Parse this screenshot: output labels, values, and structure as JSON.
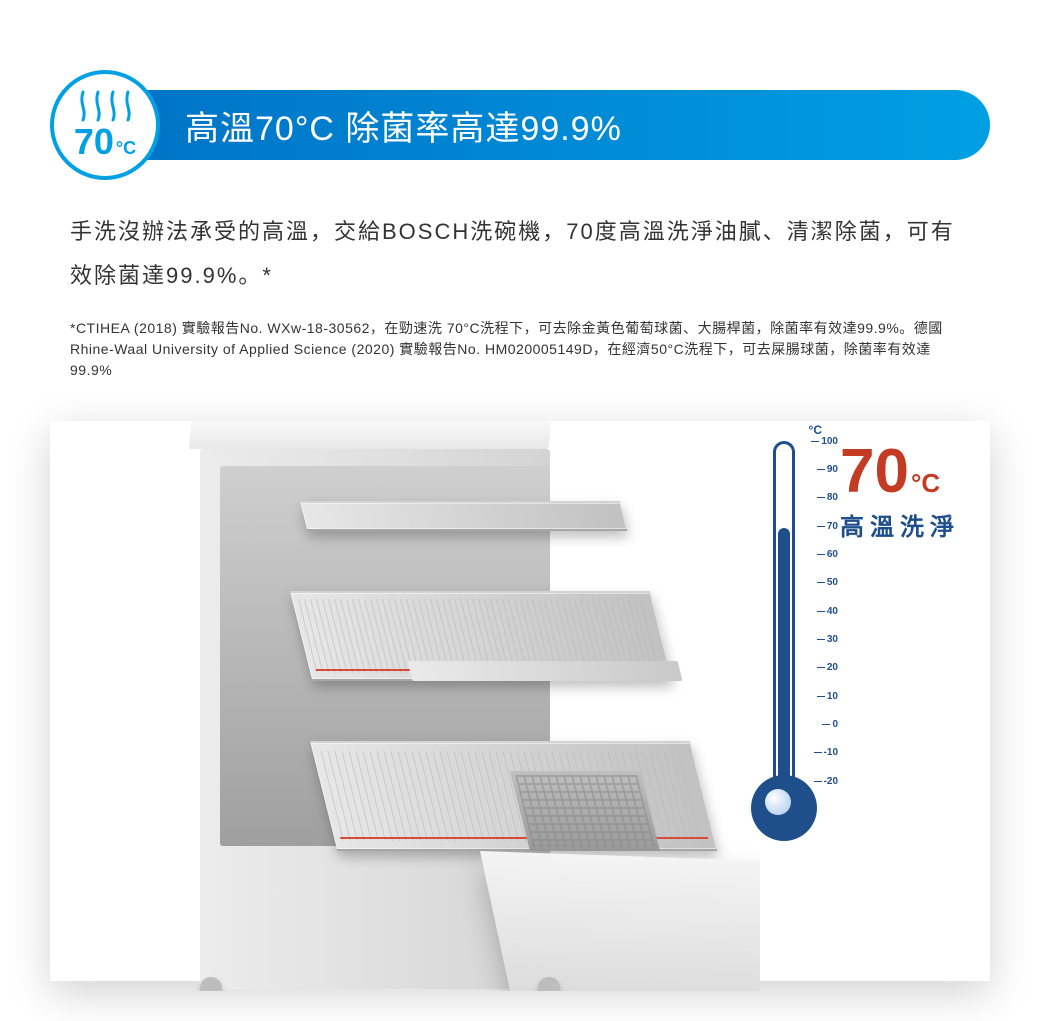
{
  "badge": {
    "temp_value": "70",
    "temp_unit": "°C",
    "wave_color": "#00a0e4",
    "border_color": "#00a0e4"
  },
  "banner": {
    "text": "高溫70°C 除菌率高達99.9%",
    "gradient_start": "#0072c6",
    "gradient_end": "#009fe3",
    "text_color": "#ffffff"
  },
  "description": "手洗沒辦法承受的高溫，交給BOSCH洗碗機，70度高溫洗淨油膩、清潔除菌，可有效除菌達99.9%。*",
  "fineprint": "*CTIHEA (2018) 實驗報告No. WXw-18-30562，在勁速洗 70°C洗程下，可去除金黃色葡萄球菌、大腸桿菌，除菌率有效達99.9%。德國Rhine-Waal University of Applied Science (2020) 實驗報告No. HM020005149D，在經濟50°C洗程下，可去屎腸球菌，除菌率有效達99.9%",
  "thermometer": {
    "unit_label": "°C",
    "ticks": [
      -20,
      -10,
      0,
      10,
      20,
      30,
      40,
      50,
      60,
      70,
      80,
      90,
      100
    ],
    "min": -20,
    "max": 100,
    "fill_to": 70,
    "tube_color": "#1e4f8b",
    "bulb_color": "#1e4f8b"
  },
  "callout": {
    "temp_value": "70",
    "temp_unit": "°C",
    "subtitle": "高溫洗淨",
    "temp_color": "#c23b22",
    "subtitle_color": "#1e4f8b"
  }
}
